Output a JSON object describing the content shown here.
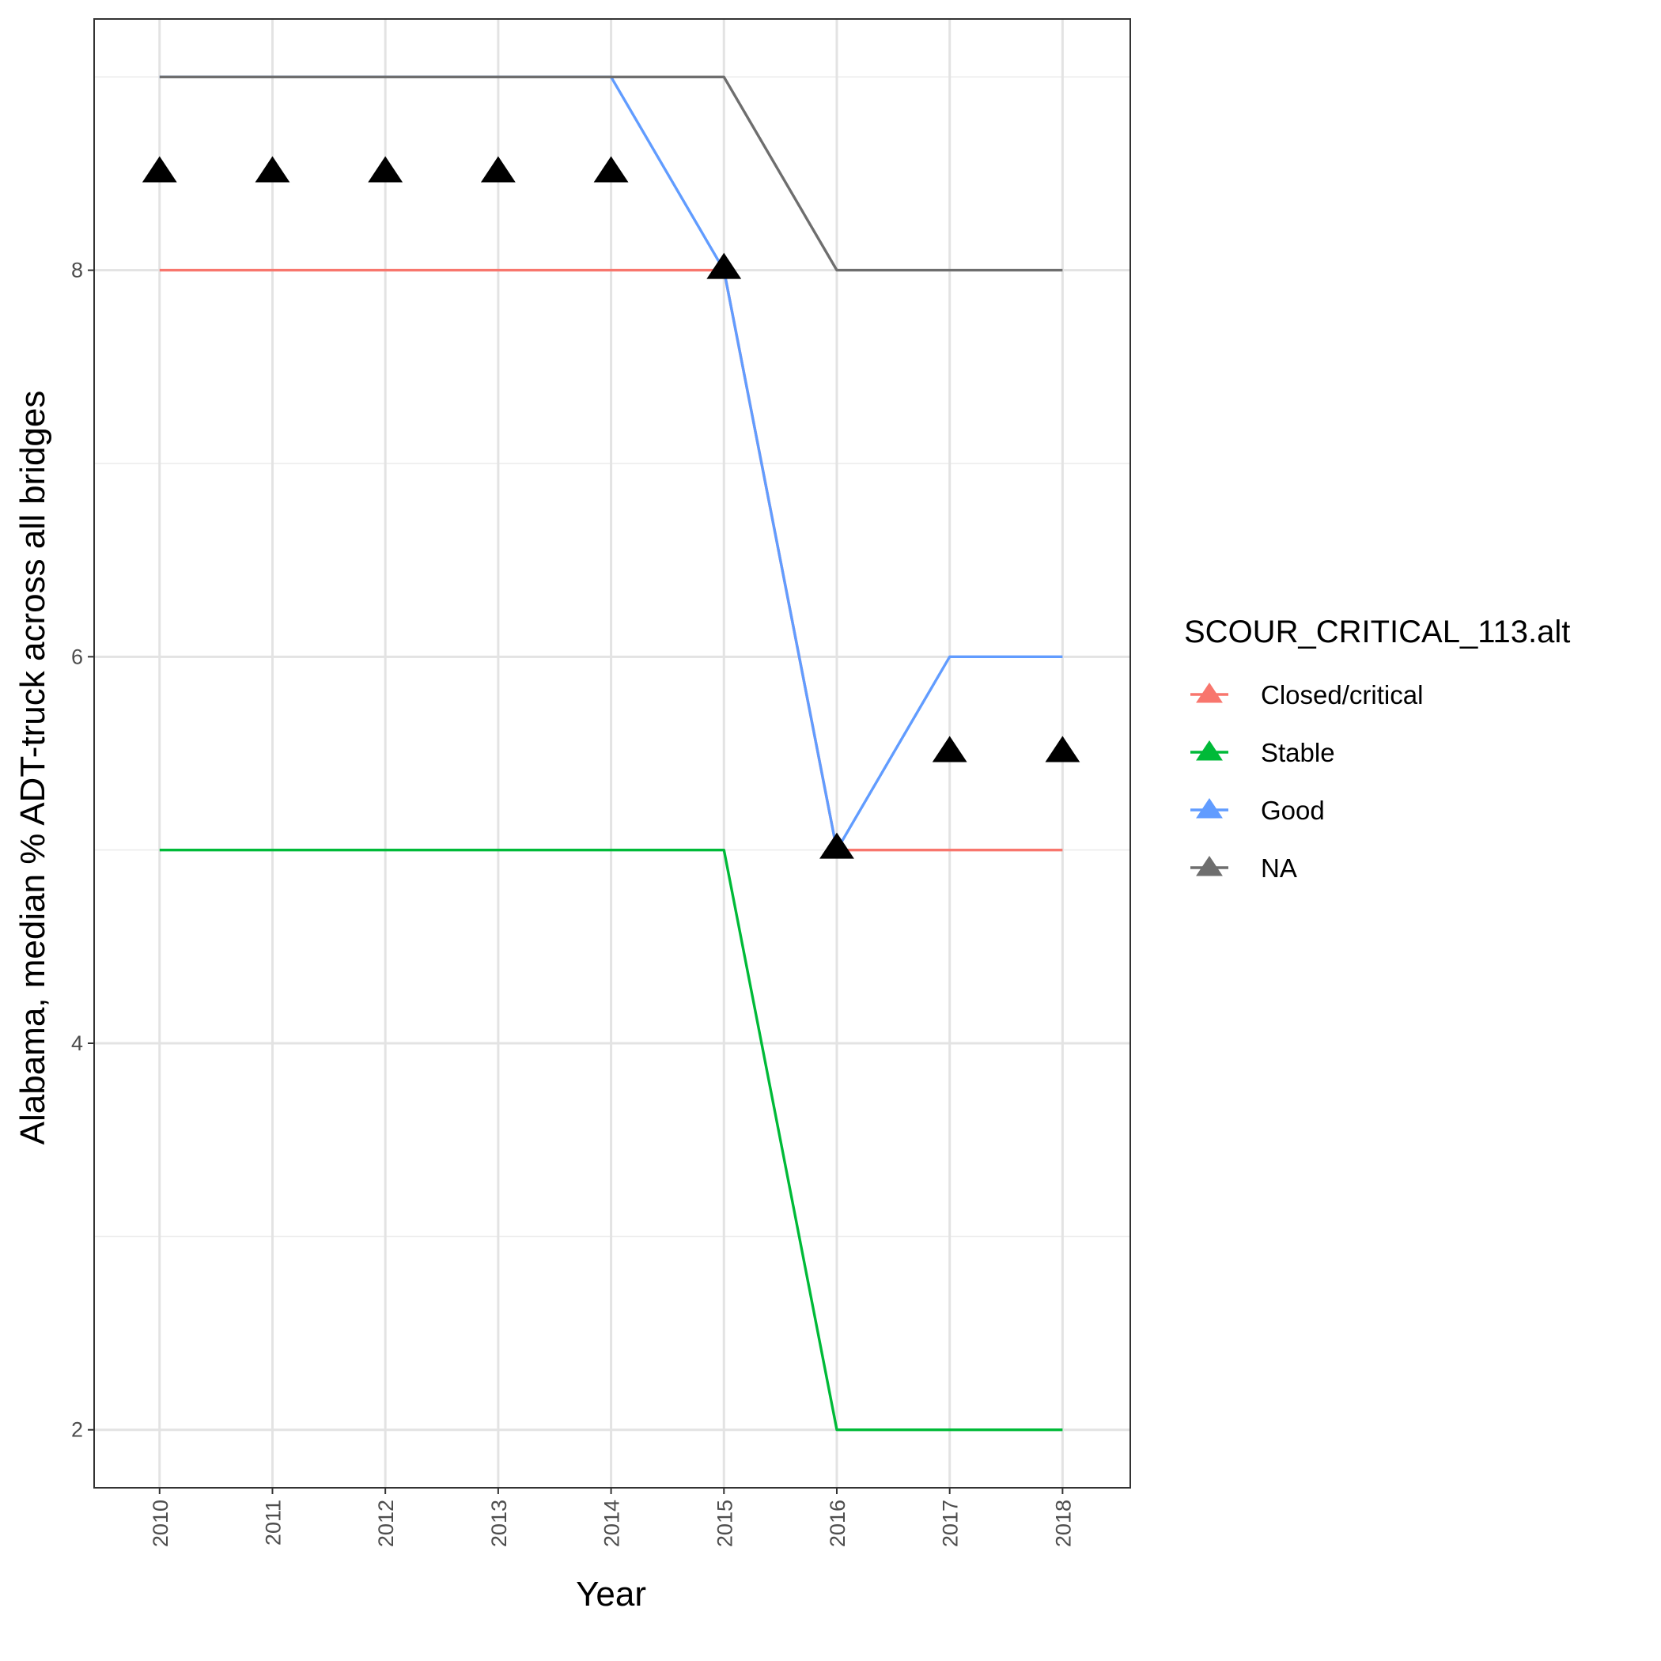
{
  "chart_data": {
    "type": "line",
    "title": "",
    "xlabel": "Year",
    "ylabel": "Alabama, median % ADT-truck across all bridges",
    "x": [
      2010,
      2011,
      2012,
      2013,
      2014,
      2015,
      2016,
      2017,
      2018
    ],
    "x_tick_labels": [
      "2010",
      "2011",
      "2012",
      "2013",
      "2014",
      "2015",
      "2016",
      "2017",
      "2018"
    ],
    "y_ticks": [
      2,
      4,
      6,
      8
    ],
    "y_tick_labels": [
      "2",
      "4",
      "6",
      "8"
    ],
    "ylim": [
      1.7,
      9.3
    ],
    "grid": true,
    "series": [
      {
        "name": "Closed/critical",
        "color": "#F8766D",
        "values": [
          8,
          8,
          8,
          8,
          8,
          8,
          5,
          5,
          5
        ]
      },
      {
        "name": "Stable",
        "color": "#00BA38",
        "values": [
          5,
          5,
          5,
          5,
          5,
          5,
          2,
          2,
          2
        ]
      },
      {
        "name": "Good",
        "color": "#619CFF",
        "values": [
          9,
          9,
          9,
          9,
          9,
          8,
          5,
          6,
          6
        ]
      },
      {
        "name": "NA",
        "color": "#6E6E6E",
        "values": [
          9,
          9,
          9,
          9,
          9,
          9,
          8,
          8,
          8
        ]
      }
    ],
    "points": {
      "marker": "triangle",
      "color": "#000000",
      "values": [
        8.5,
        8.5,
        8.5,
        8.5,
        8.5,
        8,
        5,
        5.5,
        5.5
      ]
    },
    "legend": {
      "title": "SCOUR_CRITICAL_113.alt",
      "position": "right"
    }
  }
}
